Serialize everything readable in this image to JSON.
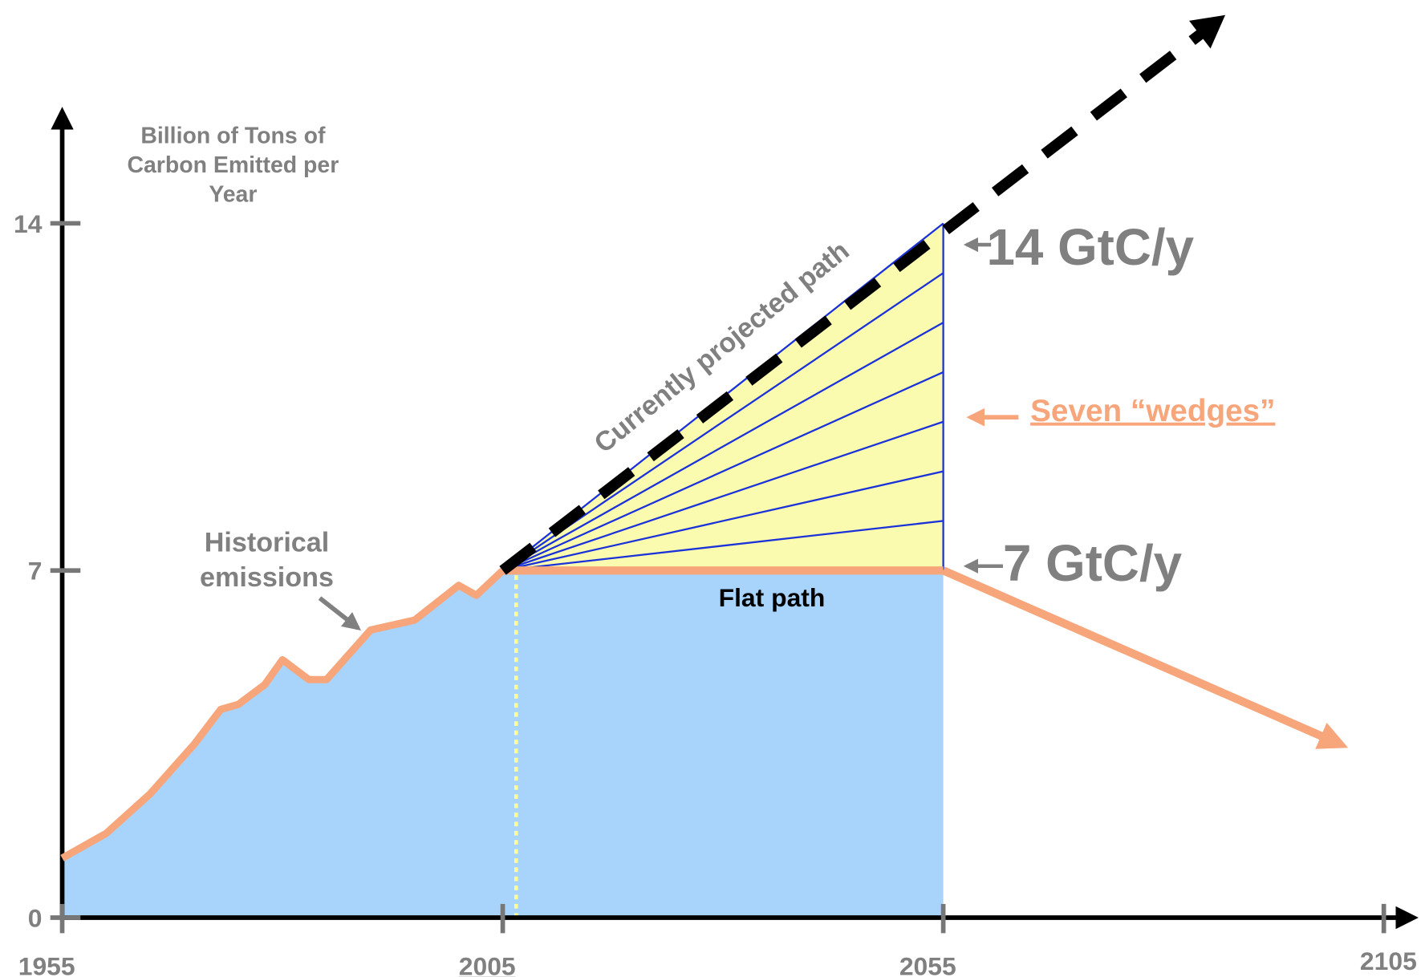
{
  "chart_data": {
    "type": "line",
    "y_label": [
      "Billion of Tons of",
      "Carbon Emitted per",
      "Year"
    ],
    "xlim": [
      1955,
      2105
    ],
    "xticks": [
      1955,
      2005,
      2055,
      2105
    ],
    "ylim": [
      0,
      16
    ],
    "yticks": [
      0,
      7,
      14
    ],
    "historical": {
      "label": [
        "Historical",
        "emissions"
      ],
      "color": "#f7a57a",
      "x": [
        1955,
        1960,
        1965,
        1970,
        1973,
        1975,
        1978,
        1980,
        1983,
        1985,
        1990,
        1995,
        2000,
        2002,
        2005
      ],
      "values": [
        1.2,
        1.7,
        2.5,
        3.5,
        4.2,
        4.3,
        4.7,
        5.2,
        4.8,
        4.8,
        5.8,
        6.0,
        6.7,
        6.5,
        7.0
      ]
    },
    "projected": {
      "label": "Currently projected path",
      "color": "#000000",
      "x": [
        2005,
        2087
      ],
      "values": [
        7,
        18.2
      ]
    },
    "flat": {
      "label": "Flat path",
      "color": "#f7a57a",
      "x": [
        2005,
        2055
      ],
      "values": [
        7,
        7
      ]
    },
    "decline": {
      "color": "#f7a57a",
      "x": [
        2055,
        2100
      ],
      "values": [
        7,
        3.5
      ]
    },
    "wedges": {
      "label": "Seven “wedges”",
      "x": [
        2005,
        2055
      ],
      "ends": [
        7,
        8,
        9,
        10,
        11,
        12,
        13,
        14
      ],
      "color": "#1a32d8",
      "fill": "#fbfbb0"
    },
    "area_fill": "#a8d4fb",
    "annotations": [
      "14 GtC/y",
      "7 GtC/y"
    ]
  }
}
